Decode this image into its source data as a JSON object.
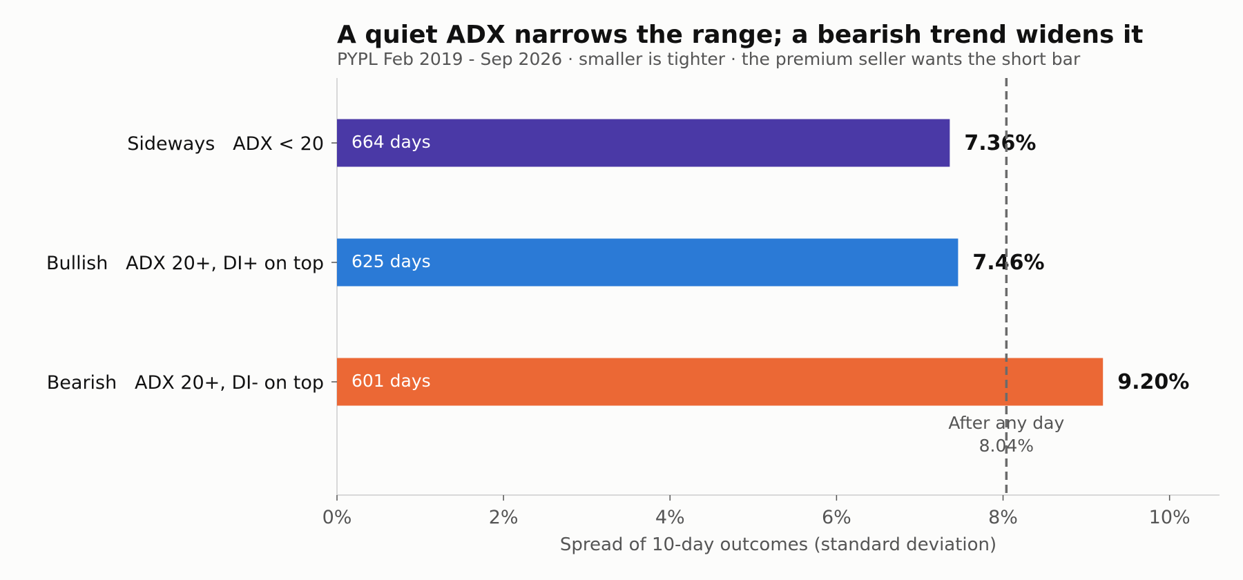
{
  "chart_data": {
    "type": "bar",
    "orientation": "horizontal",
    "title": "A quiet ADX narrows the range; a bearish trend widens it",
    "subtitle": "PYPL Feb 2019 - Sep 2026 · smaller is tighter · the premium seller wants the short bar",
    "xlabel": "Spread of 10-day outcomes (standard deviation)",
    "ylabel": "",
    "xlim": [
      0,
      10.6
    ],
    "xticks": [
      0,
      2,
      4,
      6,
      8,
      10
    ],
    "xtick_labels": [
      "0%",
      "2%",
      "4%",
      "6%",
      "8%",
      "10%"
    ],
    "grid": false,
    "categories": [
      "Sideways   ADX < 20",
      "Bullish   ADX 20+, DI+ on top",
      "Bearish   ADX 20+, DI- on top"
    ],
    "values": [
      7.36,
      7.46,
      9.2
    ],
    "value_labels": [
      "7.36%",
      "7.46%",
      "9.20%"
    ],
    "bar_labels": [
      "664 days",
      "625 days",
      "601 days"
    ],
    "colors": [
      "#4a39a6",
      "#2b7ad6",
      "#eb6835"
    ],
    "reference_line": {
      "value": 8.04,
      "label_line1": "After any day",
      "label_line2": "8.04%",
      "color": "#6b6b6b"
    }
  }
}
